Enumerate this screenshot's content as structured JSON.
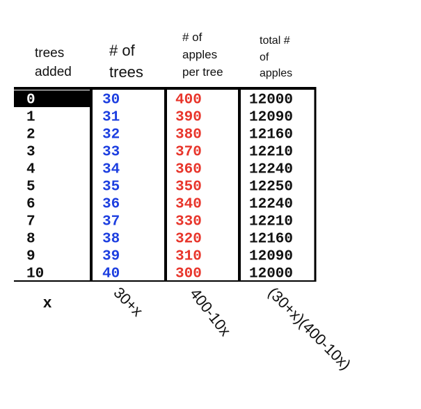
{
  "table": {
    "headers": [
      [
        "trees",
        "added"
      ],
      [
        "# of",
        "trees"
      ],
      [
        "# of",
        "apples",
        "per tree"
      ],
      [
        "total #",
        "of",
        "apples"
      ]
    ],
    "rows": [
      [
        0,
        30,
        400,
        12000
      ],
      [
        1,
        31,
        390,
        12090
      ],
      [
        2,
        32,
        380,
        12160
      ],
      [
        3,
        33,
        370,
        12210
      ],
      [
        4,
        34,
        360,
        12240
      ],
      [
        5,
        35,
        350,
        12250
      ],
      [
        6,
        36,
        340,
        12240
      ],
      [
        7,
        37,
        330,
        12210
      ],
      [
        8,
        38,
        320,
        12160
      ],
      [
        9,
        39,
        310,
        12090
      ],
      [
        10,
        40,
        300,
        12000
      ]
    ],
    "formulas": [
      "x",
      "30+x",
      "400-10x",
      "(30+x)(400-10x)"
    ]
  }
}
